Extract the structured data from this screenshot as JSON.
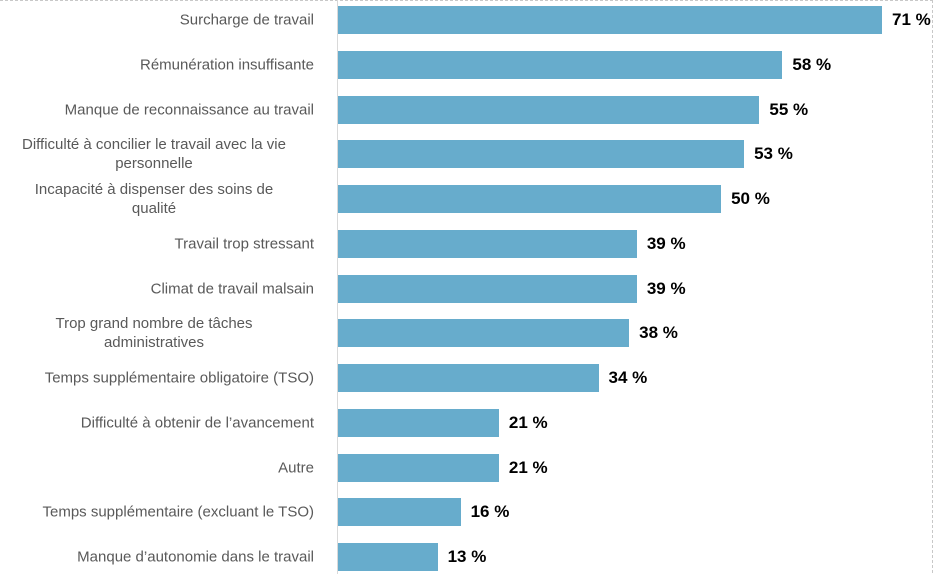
{
  "chart_data": {
    "type": "bar",
    "orientation": "horizontal",
    "title": "",
    "xlabel": "",
    "ylabel": "",
    "xlim": [
      0,
      72
    ],
    "grid": false,
    "bar_color": "#67accc",
    "value_suffix": " %",
    "categories": [
      "Surcharge de travail",
      "Rémunération insuffisante",
      "Manque de reconnaissance au travail",
      "Difficulté à concilier le travail avec la vie personnelle",
      "Incapacité à dispenser des soins de qualité",
      "Travail trop stressant",
      "Climat de travail malsain",
      "Trop grand nombre de tâches administratives",
      "Temps supplémentaire obligatoire (TSO)",
      "Difficulté à obtenir de l’avancement",
      "Autre",
      "Temps supplémentaire (excluant le TSO)",
      "Manque d’autonomie dans le travail"
    ],
    "values": [
      71,
      58,
      55,
      53,
      50,
      39,
      39,
      38,
      34,
      21,
      21,
      16,
      13
    ],
    "value_labels": [
      "71 %",
      "58 %",
      "55 %",
      "53 %",
      "50 %",
      "39 %",
      "39 %",
      "38 %",
      "34 %",
      "21 %",
      "21 %",
      "16 %",
      "13 %"
    ]
  }
}
